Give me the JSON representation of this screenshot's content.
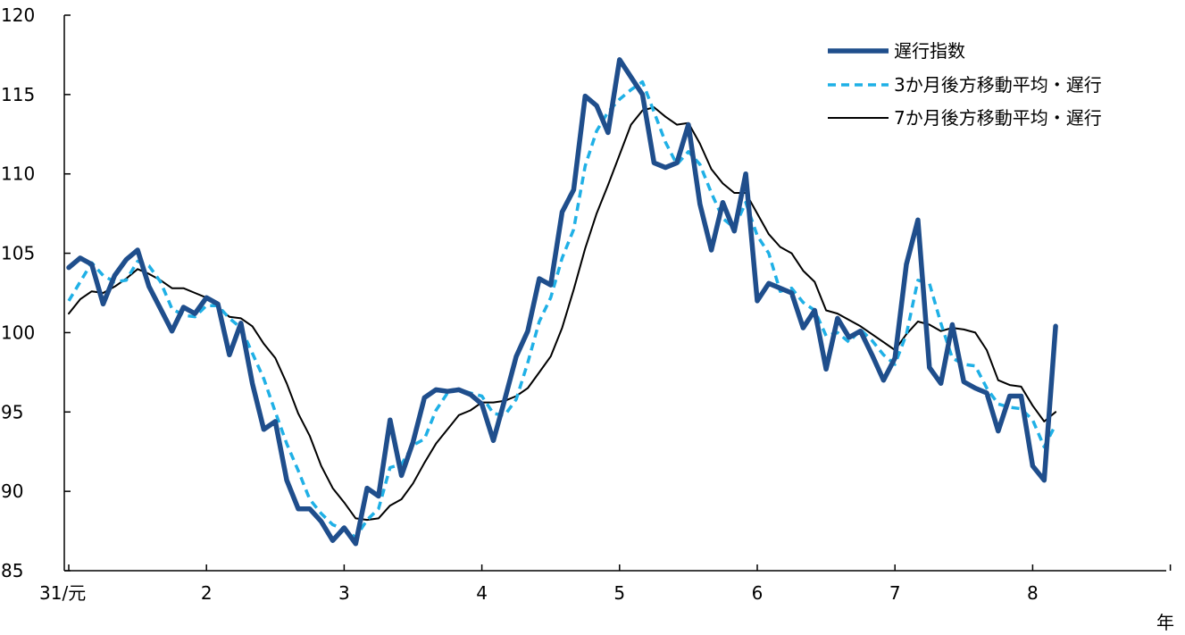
{
  "chart_data": {
    "type": "line",
    "xlabel": "年",
    "ylabel": "",
    "ylim": [
      85,
      120
    ],
    "y_ticks": [
      85,
      90,
      95,
      100,
      105,
      110,
      115,
      120
    ],
    "x_ticks": [
      "31/元",
      "2",
      "3",
      "4",
      "5",
      "6",
      "7",
      "8"
    ],
    "x_tick_positions": [
      0,
      12,
      24,
      36,
      48,
      60,
      72,
      84
    ],
    "xlim": [
      0,
      96
    ],
    "grid": false,
    "legend_position": "top-right",
    "series": [
      {
        "name": "遅行指数",
        "color": "#1f4e8c",
        "style": "solid-thick",
        "values": [
          104.1,
          104.7,
          104.3,
          101.8,
          103.6,
          104.6,
          105.2,
          102.9,
          101.5,
          100.1,
          101.6,
          101.2,
          102.2,
          101.8,
          98.6,
          100.6,
          96.8,
          93.9,
          94.4,
          90.7,
          88.9,
          88.9,
          88.1,
          86.9,
          87.7,
          86.7,
          90.2,
          89.7,
          94.5,
          91.0,
          93.1,
          95.9,
          96.4,
          96.3,
          96.4,
          96.1,
          95.5,
          93.2,
          95.8,
          98.5,
          100.1,
          103.4,
          103.0,
          107.6,
          109.0,
          114.9,
          114.3,
          112.6,
          117.2,
          116.1,
          115.0,
          110.7,
          110.4,
          110.7,
          113.1,
          108.1,
          105.2,
          108.2,
          106.4,
          110.0,
          102.0,
          103.1,
          102.8,
          102.5,
          100.3,
          101.4,
          97.7,
          100.9,
          99.7,
          100.1,
          98.6,
          97.0,
          98.4,
          104.3,
          107.1,
          97.8,
          96.8,
          100.5,
          96.9,
          96.5,
          96.2,
          93.8,
          96.0,
          96.0,
          91.6,
          90.7,
          100.4
        ]
      },
      {
        "name": "3か月後方移動平均・遅行",
        "color": "#1fb0e6",
        "style": "dashed",
        "values": [
          102.0,
          103.2,
          104.4,
          103.6,
          103.2,
          103.3,
          104.5,
          104.2,
          103.2,
          101.5,
          101.1,
          101.0,
          101.7,
          101.7,
          100.9,
          100.3,
          98.7,
          97.1,
          95.0,
          93.0,
          91.3,
          89.5,
          88.6,
          87.9,
          87.6,
          87.1,
          88.2,
          88.9,
          91.5,
          91.7,
          92.9,
          93.3,
          95.1,
          96.2,
          96.4,
          96.2,
          96.0,
          94.9,
          94.8,
          95.8,
          98.1,
          100.7,
          102.2,
          104.7,
          106.5,
          110.5,
          112.7,
          113.9,
          114.7,
          115.3,
          115.8,
          113.9,
          112.0,
          110.6,
          111.4,
          110.6,
          108.8,
          107.2,
          106.6,
          108.2,
          106.1,
          105.0,
          102.6,
          102.8,
          101.9,
          101.4,
          99.8,
          100.0,
          99.4,
          100.2,
          99.5,
          98.6,
          98.0,
          99.9,
          103.3,
          103.1,
          100.6,
          98.4,
          98.0,
          97.9,
          96.5,
          95.5,
          95.3,
          95.2,
          94.5,
          92.8,
          94.2
        ]
      },
      {
        "name": "7か月後方移動平均・遅行",
        "color": "#000000",
        "style": "solid-thin",
        "values": [
          101.2,
          102.1,
          102.6,
          102.5,
          102.9,
          103.4,
          104.0,
          103.7,
          103.3,
          102.8,
          102.8,
          102.5,
          102.2,
          101.6,
          101.0,
          100.9,
          100.4,
          99.3,
          98.4,
          96.8,
          94.9,
          93.5,
          91.6,
          90.2,
          89.3,
          88.3,
          88.2,
          88.3,
          89.1,
          89.5,
          90.5,
          91.8,
          93.0,
          93.9,
          94.8,
          95.1,
          95.6,
          95.6,
          95.7,
          96.0,
          96.5,
          97.5,
          98.5,
          100.3,
          102.7,
          105.3,
          107.5,
          109.3,
          111.2,
          113.1,
          114.0,
          114.2,
          113.6,
          113.1,
          113.2,
          111.9,
          110.3,
          109.4,
          108.8,
          108.8,
          107.5,
          106.2,
          105.4,
          105.0,
          103.9,
          103.2,
          101.4,
          101.2,
          100.8,
          100.4,
          99.9,
          99.4,
          98.9,
          99.9,
          100.7,
          100.5,
          100.1,
          100.3,
          100.2,
          100.0,
          98.9,
          97.0,
          96.7,
          96.6,
          95.4,
          94.4,
          95.0
        ]
      }
    ]
  }
}
